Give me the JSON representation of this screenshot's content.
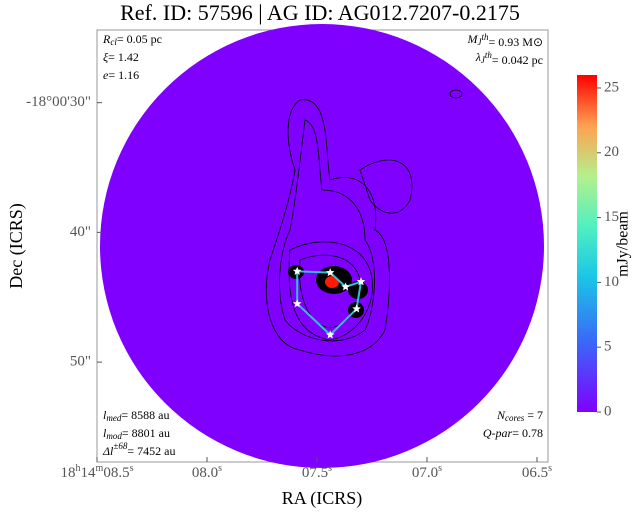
{
  "chart_data": {
    "type": "image",
    "title": "Ref. ID: 57596 | AG ID: AG012.7207-0.2175",
    "xlabel": "RA (ICRS)",
    "ylabel": "Dec (ICRS)",
    "xlim": [
      8.5,
      6.45
    ],
    "ylim": [
      24.4,
      57.7
    ],
    "xticks": [
      {
        "value": 8.5,
        "label": "18h14m08.5s"
      },
      {
        "value": 8.0,
        "label": "08.0s"
      },
      {
        "value": 7.5,
        "label": "07.5s"
      },
      {
        "value": 7.0,
        "label": "07.0s"
      },
      {
        "value": 6.5,
        "label": "06.5s"
      }
    ],
    "yticks": [
      {
        "value": 30,
        "label": "-18°00'30\""
      },
      {
        "value": 40,
        "label": "40\""
      },
      {
        "value": 50,
        "label": "50\""
      }
    ],
    "colorbar": {
      "label": "mJy/beam",
      "lim": [
        0,
        26
      ],
      "ticks": [
        0,
        5,
        10,
        15,
        20,
        25
      ]
    },
    "cores": {
      "x": [
        7.44,
        7.59,
        7.59,
        7.44,
        7.32,
        7.3,
        7.37
      ],
      "y": [
        43.1,
        43.0,
        45.5,
        47.9,
        45.9,
        43.8,
        44.2
      ],
      "color": "#2ec4d6"
    },
    "annotations": {
      "top_left": [
        {
          "sym": "R",
          "sub": "cl",
          "text": "= 0.05 pc"
        },
        {
          "sym": "ξ",
          "text": "= 1.42"
        },
        {
          "sym": "e",
          "text": "= 1.16"
        }
      ],
      "top_right": [
        {
          "sym": "M",
          "sub": "J",
          "sup": "th",
          "text": "= 0.93 M⊙"
        },
        {
          "sym": "λ",
          "sub": "J",
          "sup": "th",
          "text": "= 0.042 pc"
        }
      ],
      "bottom_left": [
        {
          "sym": "l",
          "sub": "med",
          "text": "= 8588 au"
        },
        {
          "sym": "l",
          "sub": "mod",
          "text": "= 8801 au"
        },
        {
          "sym": "Δl",
          "sup": "±68",
          "text": "= 7452 au"
        }
      ],
      "bottom_right": [
        {
          "sym": "N",
          "sub": "cores",
          "text": " = 7"
        },
        {
          "sym": "Q-par",
          "text": "= 0.78"
        }
      ]
    }
  }
}
